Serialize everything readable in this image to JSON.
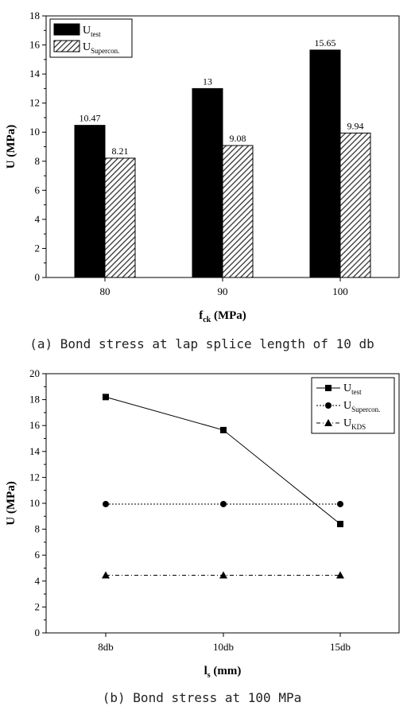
{
  "chart_data": [
    {
      "type": "bar",
      "caption": "(a) Bond stress at lap splice length of 10 db",
      "ylabel": "U (MPa)",
      "xlabel": {
        "main": "f",
        "sub": "ck",
        "unit": " (MPa)"
      },
      "categories": [
        "80",
        "90",
        "100"
      ],
      "ylim": [
        0,
        18
      ],
      "yticks": [
        "0",
        "2",
        "4",
        "6",
        "8",
        "10",
        "12",
        "14",
        "16",
        "18"
      ],
      "series": [
        {
          "name": "U",
          "sub": "test",
          "values": [
            10.47,
            13,
            15.65
          ],
          "labels": [
            "10.47",
            "13",
            "15.65"
          ],
          "color": "#000000"
        },
        {
          "name": "U",
          "sub": "Supercon.",
          "values": [
            8.21,
            9.08,
            9.94
          ],
          "labels": [
            "8.21",
            "9.08",
            "9.94"
          ],
          "color": "#555555"
        }
      ],
      "legend": "top-left",
      "grid": false
    },
    {
      "type": "line",
      "caption": "(b) Bond stress at 100 MPa",
      "ylabel": "U (MPa)",
      "xlabel": {
        "main": "l",
        "sub": "s",
        "unit": " (mm)"
      },
      "categories": [
        "8db",
        "10db",
        "15db"
      ],
      "ylim": [
        0,
        20
      ],
      "yticks": [
        "0",
        "2",
        "4",
        "6",
        "8",
        "10",
        "12",
        "14",
        "16",
        "18",
        "20"
      ],
      "series": [
        {
          "name": "U",
          "sub": "test",
          "values": [
            18.2,
            15.65,
            8.4
          ],
          "marker": "square",
          "line": "solid"
        },
        {
          "name": "U",
          "sub": "Supercon.",
          "values": [
            9.94,
            9.94,
            9.94
          ],
          "marker": "circle",
          "line": "dotted"
        },
        {
          "name": "U",
          "sub": "KDS",
          "values": [
            4.45,
            4.45,
            4.45
          ],
          "marker": "triangle",
          "line": "dashdot"
        }
      ],
      "legend": "top-right",
      "grid": false
    }
  ]
}
